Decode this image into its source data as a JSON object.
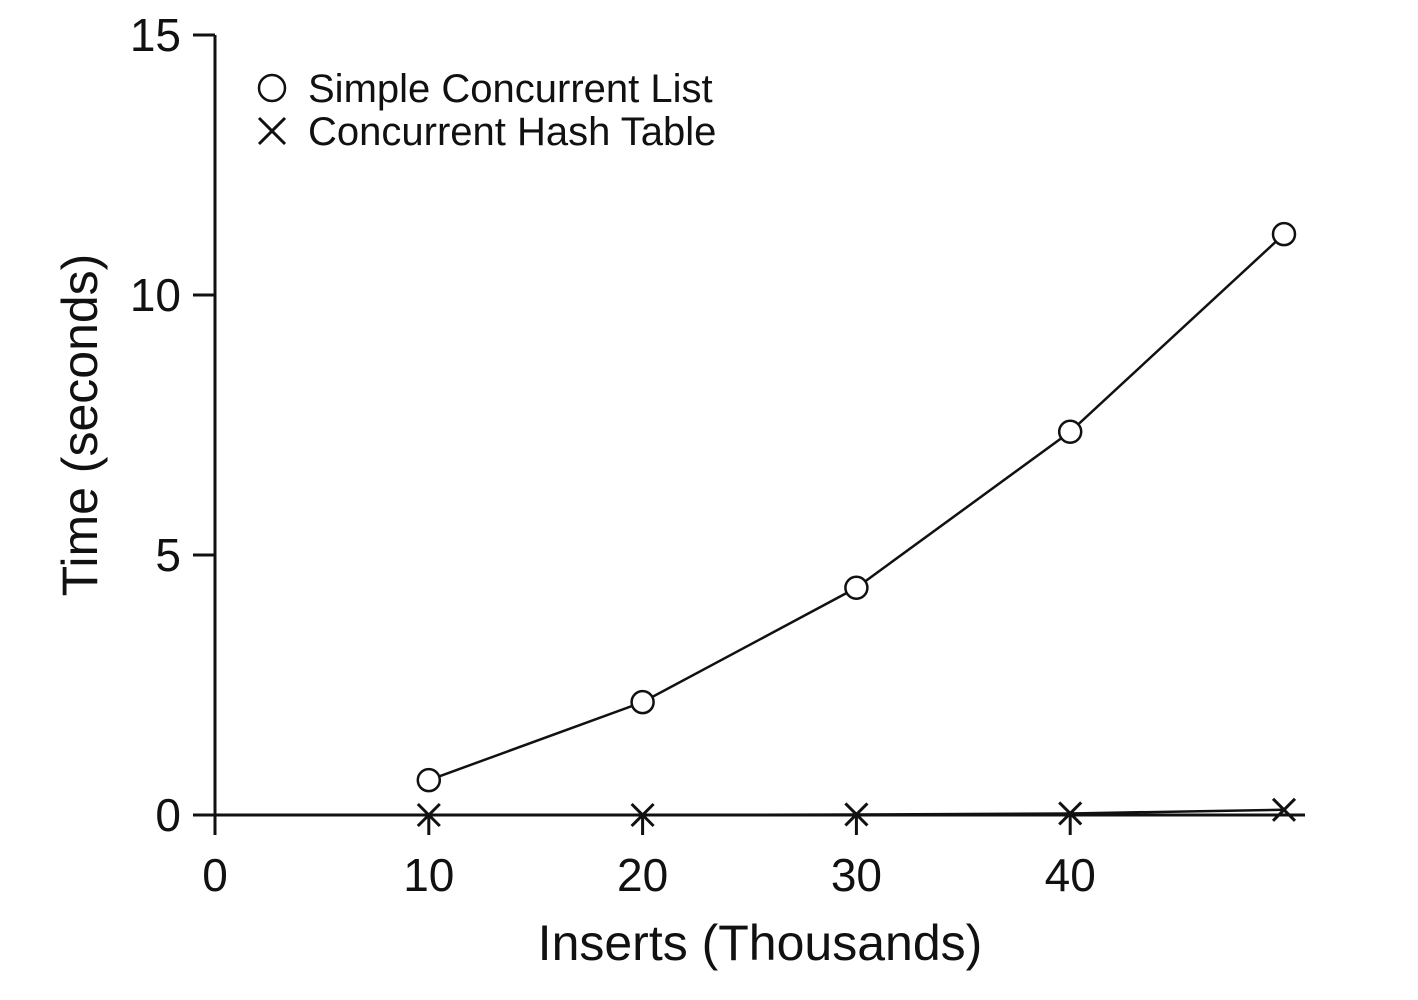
{
  "chart_data": {
    "type": "line",
    "xlabel": "Inserts (Thousands)",
    "ylabel": "Time (seconds)",
    "xlim": [
      0,
      50
    ],
    "ylim": [
      0,
      15
    ],
    "xticks": [
      0,
      10,
      20,
      30,
      40
    ],
    "yticks": [
      0,
      5,
      10,
      15
    ],
    "grid": false,
    "legend_position": "top-left",
    "x": [
      10,
      20,
      30,
      40,
      50
    ],
    "series": [
      {
        "name": "Simple Concurrent List",
        "marker": "circle",
        "values": [
          0.67,
          2.17,
          4.37,
          7.37,
          11.17
        ]
      },
      {
        "name": "Concurrent Hash Table",
        "marker": "x",
        "values": [
          0.0,
          0.0,
          0.01,
          0.03,
          0.1
        ]
      }
    ]
  }
}
